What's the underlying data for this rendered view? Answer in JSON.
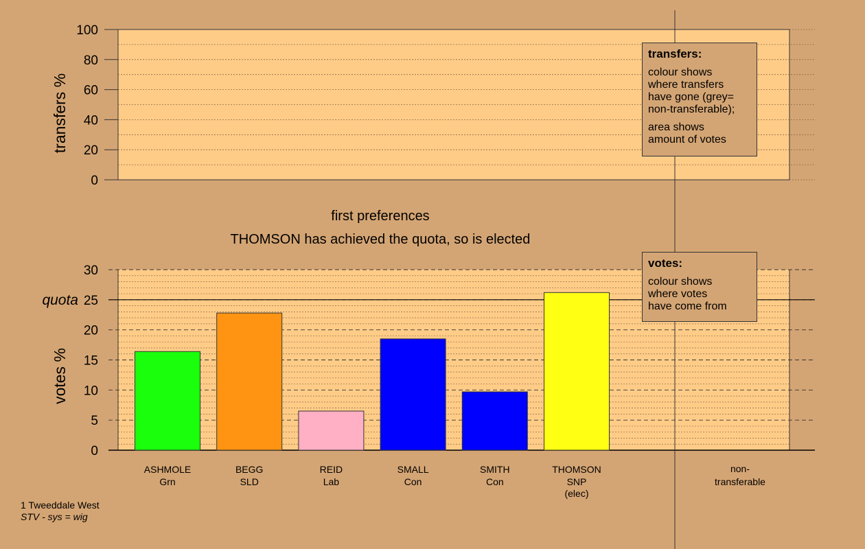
{
  "top_panel": {
    "ylabel": "transfers %",
    "ticks": [
      0,
      20,
      40,
      60,
      80,
      100
    ],
    "ylim": [
      0,
      100
    ],
    "legend": {
      "title": "transfers:",
      "lines": [
        "colour shows",
        "where transfers",
        "have gone (grey=",
        "non-transferable);"
      ],
      "lines2": [
        "area shows",
        "amount of votes"
      ]
    }
  },
  "headings": {
    "stage": "first preferences",
    "status": "THOMSON has achieved the quota, so is elected"
  },
  "chart_data": {
    "type": "bar",
    "ylabel": "votes %",
    "ylim": [
      0,
      30
    ],
    "ticks": [
      0,
      5,
      10,
      15,
      20,
      25,
      30
    ],
    "quota_label": "quota",
    "quota": 25,
    "categories": [
      {
        "name": "ASHMOLE",
        "party": "Grn",
        "note": ""
      },
      {
        "name": "BEGG",
        "party": "SLD",
        "note": ""
      },
      {
        "name": "REID",
        "party": "Lab",
        "note": ""
      },
      {
        "name": "SMALL",
        "party": "Con",
        "note": ""
      },
      {
        "name": "SMITH",
        "party": "Con",
        "note": ""
      },
      {
        "name": "THOMSON",
        "party": "SNP",
        "note": "(elec)"
      }
    ],
    "values": [
      16.4,
      22.8,
      6.5,
      18.5,
      9.7,
      26.2
    ],
    "colors": [
      "#1aff0c",
      "#ff9412",
      "#ffb0c4",
      "#0000ff",
      "#0000ff",
      "#ffff14"
    ],
    "nontransferable_label": [
      "non-",
      "transferable"
    ],
    "legend": {
      "title": "votes:",
      "lines": [
        "colour shows",
        "where votes",
        "have come from"
      ]
    }
  },
  "footer": {
    "ward": "1 Tweeddale West",
    "system": "STV - sys = wig"
  }
}
